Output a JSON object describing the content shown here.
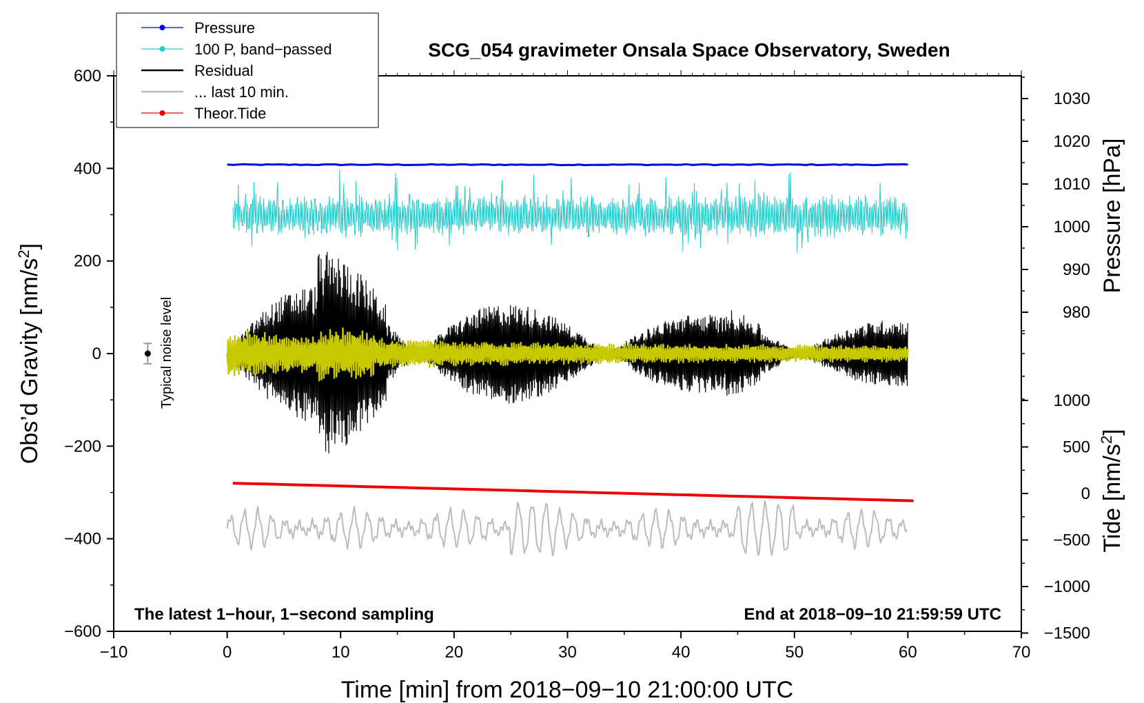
{
  "chart_data": {
    "type": "line",
    "title": "SCG_054 gravimeter Onsala Space Observatory, Sweden",
    "xlabel": "Time [min] from 2018−09−10 21:00:00 UTC",
    "ylabel_left": "Obs’d Gravity [nm/s",
    "ylabel_pressure": "Pressure [hPa]",
    "ylabel_tide": "Tide [nm/s",
    "unit_superscript": "2",
    "unit_close": "]",
    "xlim": [
      -10,
      70
    ],
    "ylim_left": [
      -600,
      600
    ],
    "x_ticks": [
      "−10",
      "0",
      "10",
      "20",
      "30",
      "40",
      "50",
      "60",
      "70"
    ],
    "y_ticks_left": [
      "−600",
      "−400",
      "−200",
      "0",
      "200",
      "400",
      "600"
    ],
    "pressure_ticks": [
      "980",
      "990",
      "1000",
      "1010",
      "1020",
      "1030"
    ],
    "tide_ticks": [
      "−1500",
      "−1000",
      "−500",
      "0",
      "500",
      "1000"
    ],
    "note_left": "The latest 1−hour, 1−second sampling",
    "note_right": "End at 2018−09−10 21:59:59 UTC",
    "noise_label": "Typical noise level",
    "noise_marker": {
      "x": -7,
      "y": 0,
      "err": 22
    },
    "legend": [
      {
        "label": "Pressure",
        "color": "#0000ee",
        "marker": true
      },
      {
        "label": "100 P, band−passed",
        "color": "#22cccc",
        "marker": true
      },
      {
        "label": "Residual",
        "color": "#000000",
        "marker": false
      },
      {
        "label": "... last 10 min.",
        "color": "#bbbbbb",
        "marker": false
      },
      {
        "label": "Theor.Tide",
        "color": "#ee0000",
        "marker": true
      }
    ],
    "series": [
      {
        "name": "Pressure",
        "color": "#0000ee",
        "x_range": [
          0,
          60
        ],
        "level": 408
      },
      {
        "name": "100 P, band−passed",
        "color": "#22cccc",
        "x_range": [
          0,
          60
        ],
        "level": 298,
        "peak_amplitude": 95
      },
      {
        "name": "Residual",
        "color": "#000000",
        "x_range": [
          0,
          60
        ],
        "level": 0,
        "peak_amplitude": 220
      },
      {
        "name": "Residual, filtered overlay",
        "color": "#c8c800",
        "x_range": [
          0,
          60
        ],
        "level": 0,
        "peak_amplitude": 55
      },
      {
        "name": "... last 10 min.",
        "color": "#bbbbbb",
        "x_range": [
          0,
          60
        ],
        "level": -378,
        "peak_amplitude": 55
      },
      {
        "name": "Theor.Tide",
        "color": "#ee0000",
        "x_range": [
          0.5,
          60.5
        ],
        "start": -280,
        "end": -318
      }
    ]
  }
}
